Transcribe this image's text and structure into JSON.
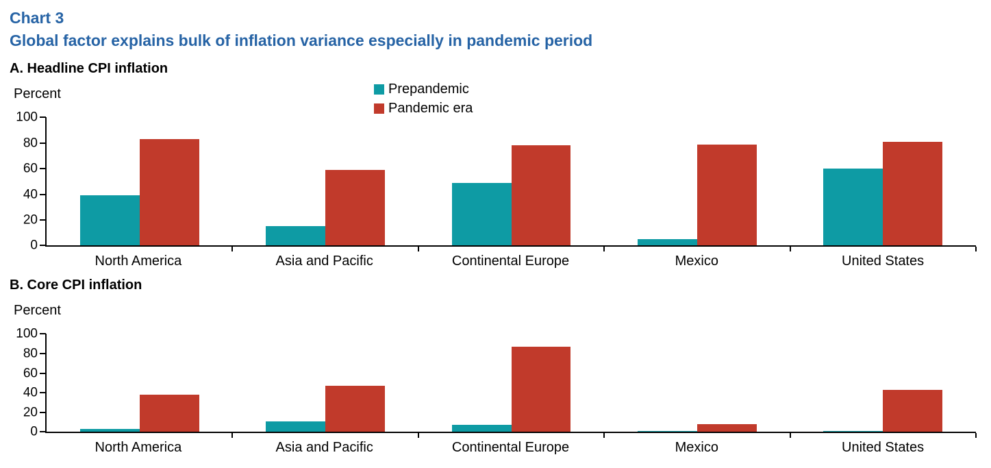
{
  "header": {
    "chart_label": "Chart 3",
    "title": "Global factor explains bulk of inflation variance especially in pandemic period"
  },
  "colors": {
    "title_blue": "#2663A5",
    "prepandemic_teal": "#0E9BA4",
    "pandemic_red": "#C13A2B",
    "axis_black": "#000000"
  },
  "legend": {
    "position": "top-center",
    "items": [
      {
        "label": "Prepandemic",
        "color": "#0E9BA4"
      },
      {
        "label": "Pandemic era",
        "color": "#C13A2B"
      }
    ]
  },
  "chart_data": [
    {
      "type": "bar",
      "panel_label": "A. Headline CPI inflation",
      "ylabel": "Percent",
      "ylim": [
        0,
        100
      ],
      "yticks": [
        0,
        20,
        40,
        60,
        80,
        100
      ],
      "grid": false,
      "categories": [
        "North America",
        "Asia and Pacific",
        "Continental Europe",
        "Mexico",
        "United States"
      ],
      "series": [
        {
          "name": "Prepandemic",
          "color": "#0E9BA4",
          "values": [
            39,
            15,
            49,
            5,
            60
          ]
        },
        {
          "name": "Pandemic era",
          "color": "#C13A2B",
          "values": [
            83,
            59,
            78,
            79,
            81
          ]
        }
      ]
    },
    {
      "type": "bar",
      "panel_label": "B. Core CPI inflation",
      "ylabel": "Percent",
      "ylim": [
        0,
        100
      ],
      "yticks": [
        0,
        20,
        40,
        60,
        80,
        100
      ],
      "grid": false,
      "categories": [
        "North America",
        "Asia and Pacific",
        "Continental Europe",
        "Mexico",
        "United States"
      ],
      "series": [
        {
          "name": "Prepandemic",
          "color": "#0E9BA4",
          "values": [
            3,
            11,
            7,
            1,
            1
          ]
        },
        {
          "name": "Pandemic era",
          "color": "#C13A2B",
          "values": [
            38,
            47,
            87,
            8,
            43
          ]
        }
      ]
    }
  ]
}
